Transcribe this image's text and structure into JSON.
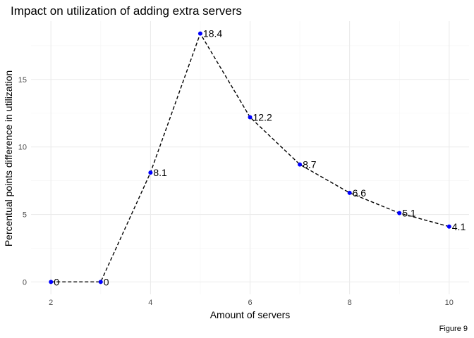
{
  "chart_data": {
    "type": "line",
    "title": "Impact on utilization of adding extra servers",
    "xlabel": "Amount of servers",
    "ylabel": "Percentual points difference in utilization",
    "caption": "Figure 9",
    "x": [
      2,
      3,
      4,
      5,
      6,
      7,
      8,
      9,
      10
    ],
    "series": [
      {
        "values": [
          0,
          0,
          8.1,
          18.4,
          12.2,
          8.7,
          6.6,
          5.1,
          4.1
        ],
        "labels": [
          "0",
          "0",
          "8.1",
          "18.4",
          "12.2",
          "8.7",
          "6.6",
          "5.1",
          "4.1"
        ],
        "point_color": "#0000ff",
        "line_color": "#000000",
        "line_style": "dashed"
      }
    ],
    "xlim": [
      1.6,
      10.4
    ],
    "ylim": [
      -0.92,
      19.32
    ],
    "x_ticks": [
      2,
      4,
      6,
      8,
      10
    ],
    "y_ticks": [
      0,
      5,
      10,
      15
    ],
    "grid": true,
    "legend": "none"
  }
}
